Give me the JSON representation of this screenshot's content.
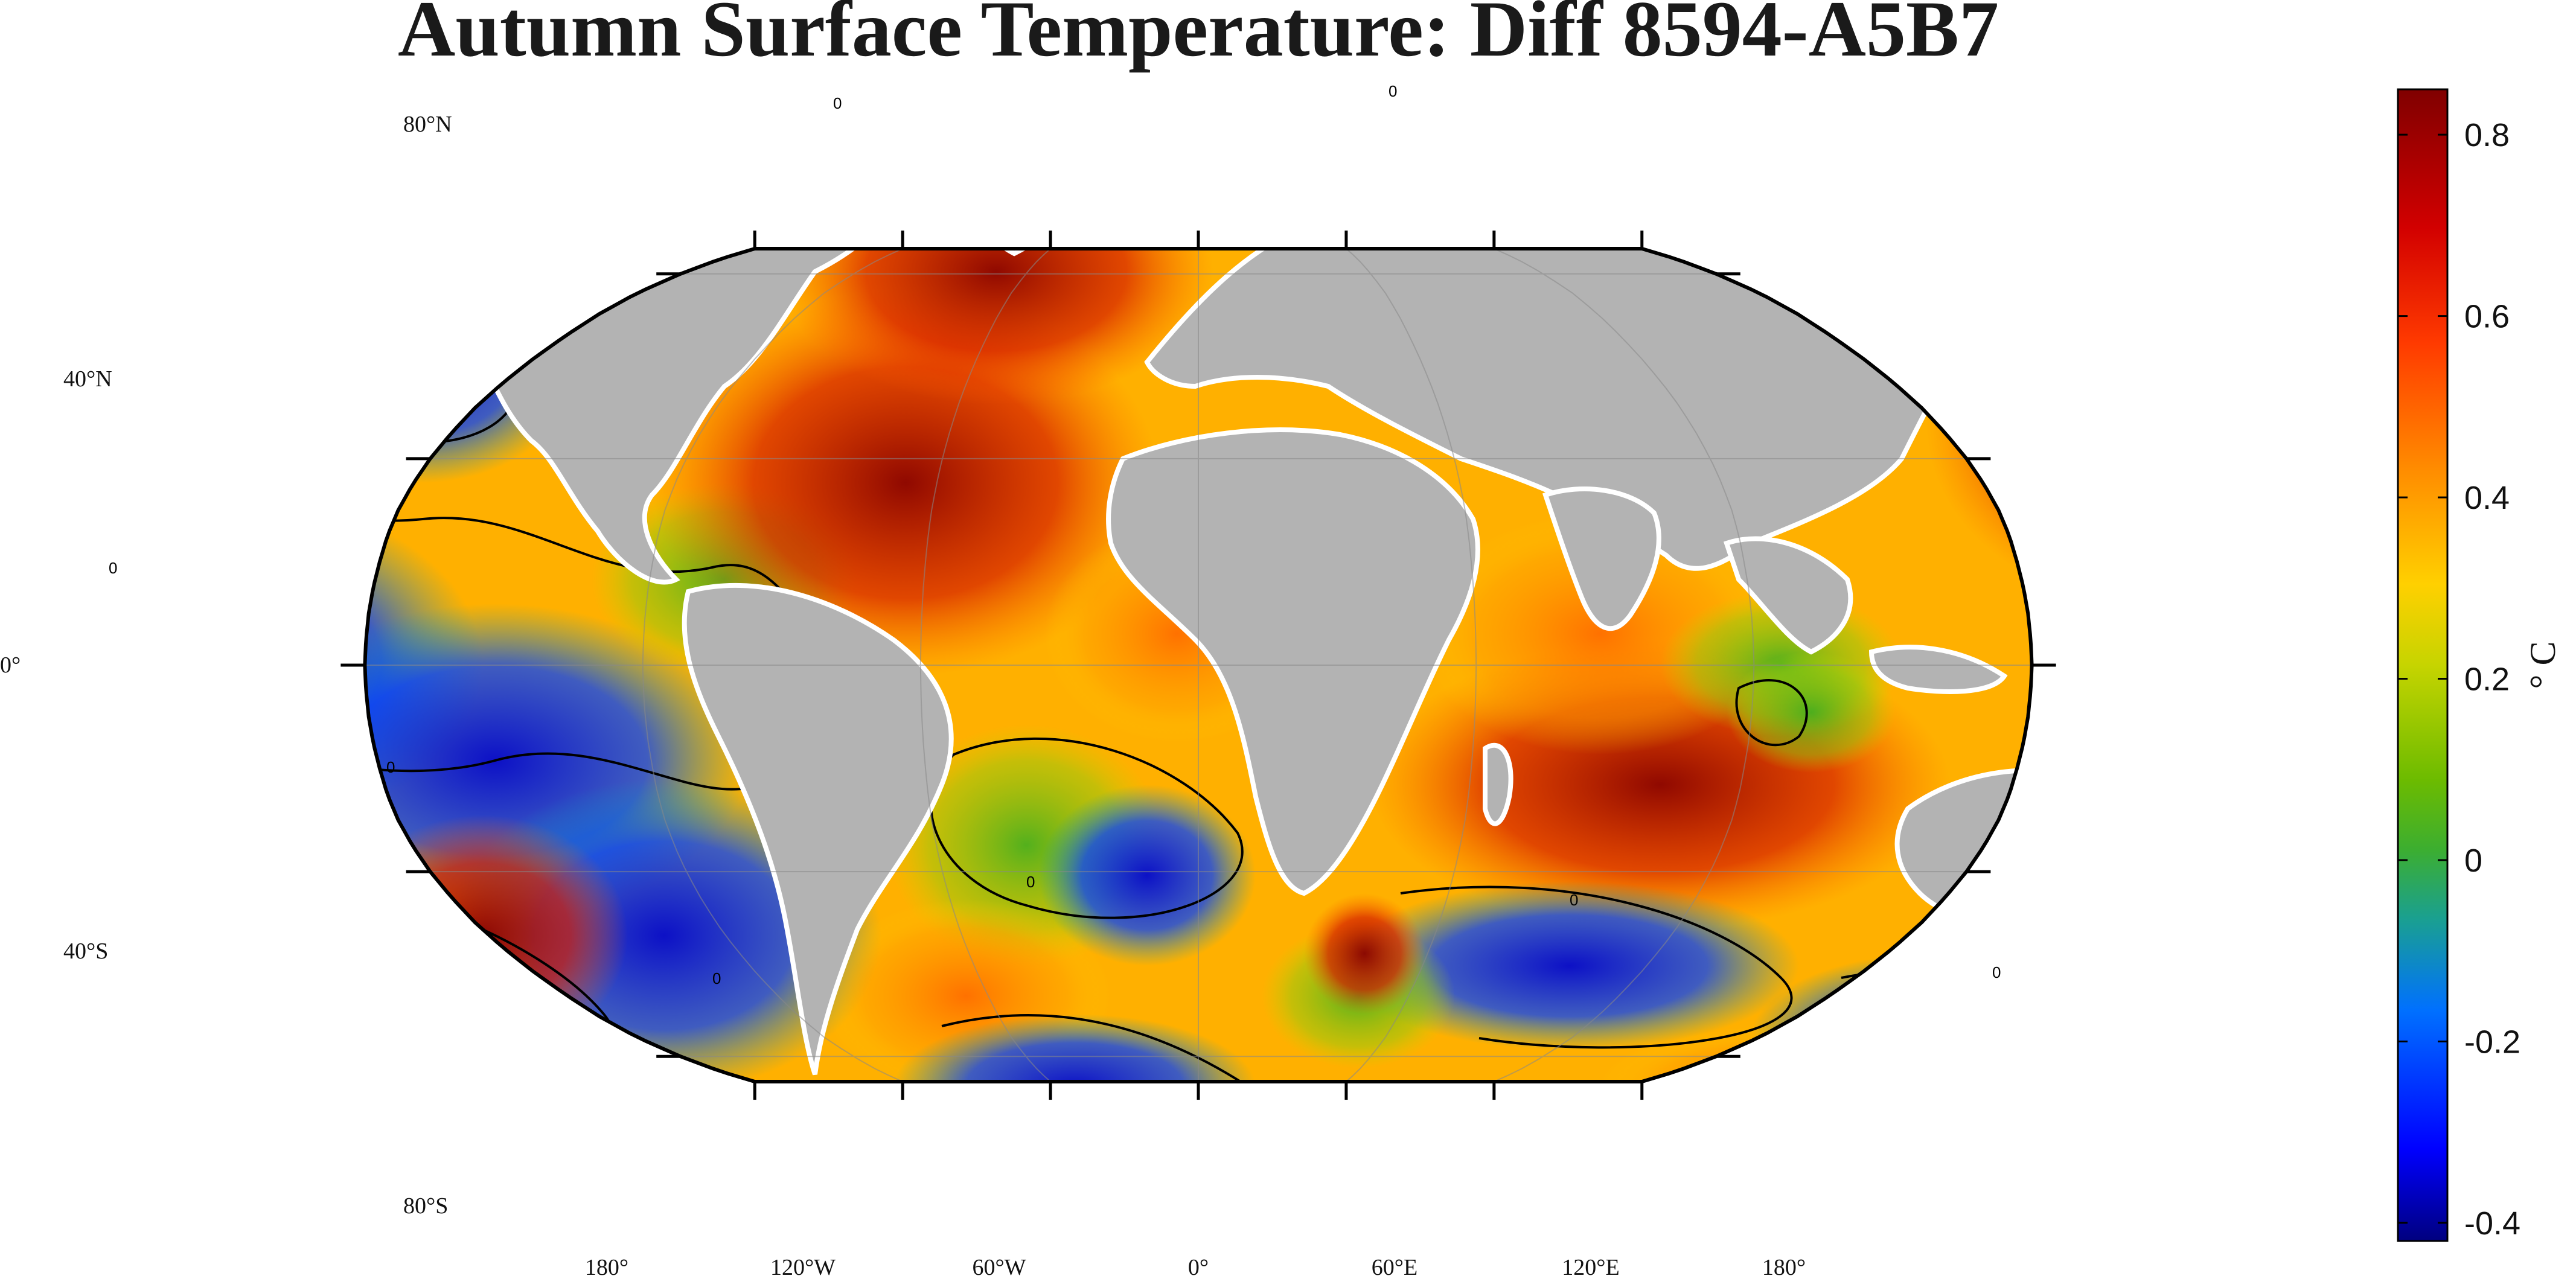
{
  "title": "Autumn Surface Temperature: Diff 8594-A5B7",
  "map": {
    "projection": "Robinson",
    "land_color": "#b3b3b3",
    "outline_color": "#000000",
    "lat_labels": [
      "80°N",
      "40°N",
      "0°",
      "40°S",
      "80°S"
    ],
    "lon_labels": [
      "180°",
      "120°W",
      "60°W",
      "0°",
      "60°E",
      "120°E",
      "180°"
    ],
    "contour_level": "0"
  },
  "colorbar": {
    "unit": "° C",
    "min": -0.42,
    "max": 0.85,
    "ticks": [
      "0.8",
      "0.6",
      "0.4",
      "0.2",
      "0",
      "-0.2",
      "-0.4"
    ],
    "tick_values": [
      0.8,
      0.6,
      0.4,
      0.2,
      0,
      -0.2,
      -0.4
    ],
    "colors": [
      "#00007f",
      "#0000ff",
      "#0080ff",
      "#20b060",
      "#50b000",
      "#9ad200",
      "#ffd000",
      "#ff8c00",
      "#ff3000",
      "#d00000",
      "#800000"
    ]
  }
}
